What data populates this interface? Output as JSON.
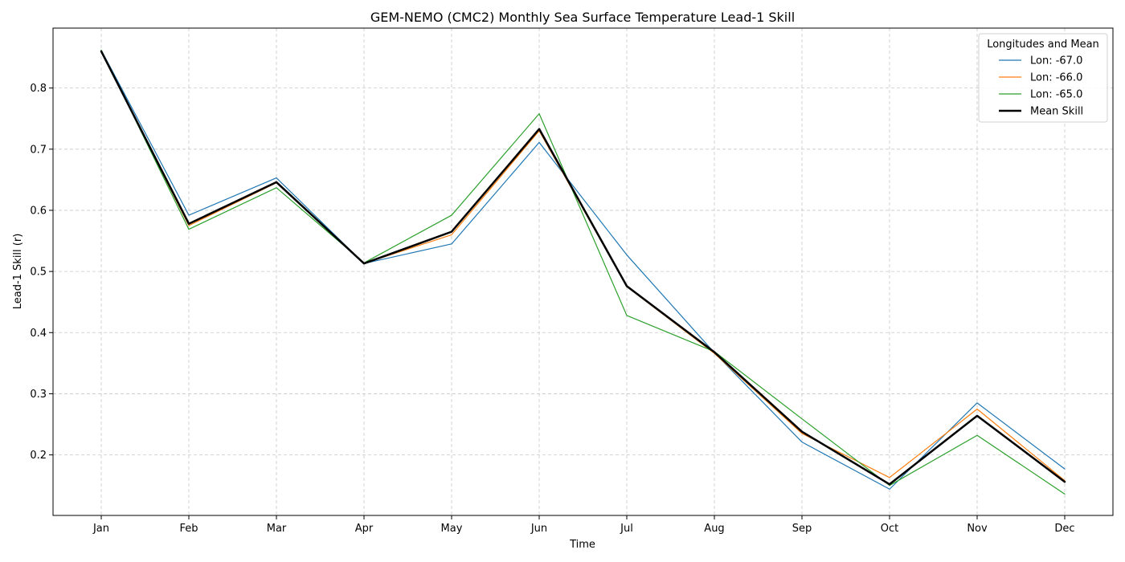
{
  "chart_data": {
    "type": "line",
    "title": "GEM-NEMO (CMC2) Monthly Sea Surface Temperature Lead-1 Skill",
    "xlabel": "Time",
    "ylabel": "Lead-1 Skill (r)",
    "categories": [
      "Jan",
      "Feb",
      "Mar",
      "Apr",
      "May",
      "Jun",
      "Jul",
      "Aug",
      "Sep",
      "Oct",
      "Nov",
      "Dec"
    ],
    "yticks": [
      "0.2",
      "0.3",
      "0.4",
      "0.5",
      "0.6",
      "0.7",
      "0.8"
    ],
    "ylim": [
      0.101,
      0.898
    ],
    "grid": true,
    "legend": {
      "title": "Longitudes and Mean",
      "placement": "top-right"
    },
    "series": [
      {
        "name": "Lon: -67.0",
        "color": "#1f77b4",
        "linewidth": 1.2,
        "values": [
          0.862,
          0.592,
          0.653,
          0.513,
          0.545,
          0.711,
          0.527,
          0.367,
          0.221,
          0.144,
          0.285,
          0.177
        ]
      },
      {
        "name": "Lon: -66.0",
        "color": "#ff7f0e",
        "linewidth": 1.2,
        "values": [
          0.86,
          0.575,
          0.645,
          0.513,
          0.56,
          0.73,
          0.475,
          0.366,
          0.235,
          0.163,
          0.275,
          0.158
        ]
      },
      {
        "name": "Lon: -65.0",
        "color": "#2ca02c",
        "linewidth": 1.2,
        "values": [
          0.862,
          0.569,
          0.637,
          0.514,
          0.592,
          0.758,
          0.428,
          0.369,
          0.259,
          0.15,
          0.232,
          0.136
        ]
      },
      {
        "name": "Mean Skill",
        "color": "#000000",
        "linewidth": 2.5,
        "values": [
          0.86,
          0.578,
          0.646,
          0.513,
          0.565,
          0.733,
          0.476,
          0.368,
          0.238,
          0.152,
          0.264,
          0.156
        ]
      }
    ]
  }
}
